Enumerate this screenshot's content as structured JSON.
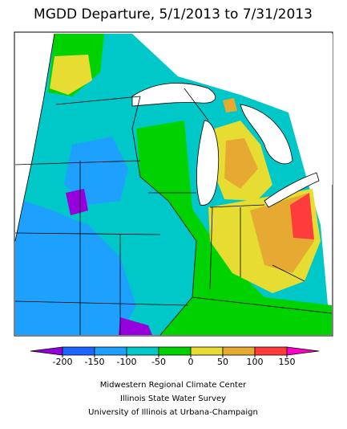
{
  "title": "MGDD Departure, 5/1/2013 to 7/31/2013",
  "legend": {
    "ticks": [
      -200,
      -150,
      -100,
      -50,
      0,
      50,
      100,
      150
    ],
    "low_color": "#9600dc",
    "colors": [
      "#1e64ff",
      "#1ea0ff",
      "#00c8c8",
      "#00d200",
      "#e6dc32",
      "#e6aa32",
      "#ff3c3c"
    ],
    "high_color": "#ff00c8"
  },
  "credits": [
    "Midwestern Regional Climate Center",
    "Illinois State Water Survey",
    "University of Illinois at Urbana-Champaign"
  ]
}
